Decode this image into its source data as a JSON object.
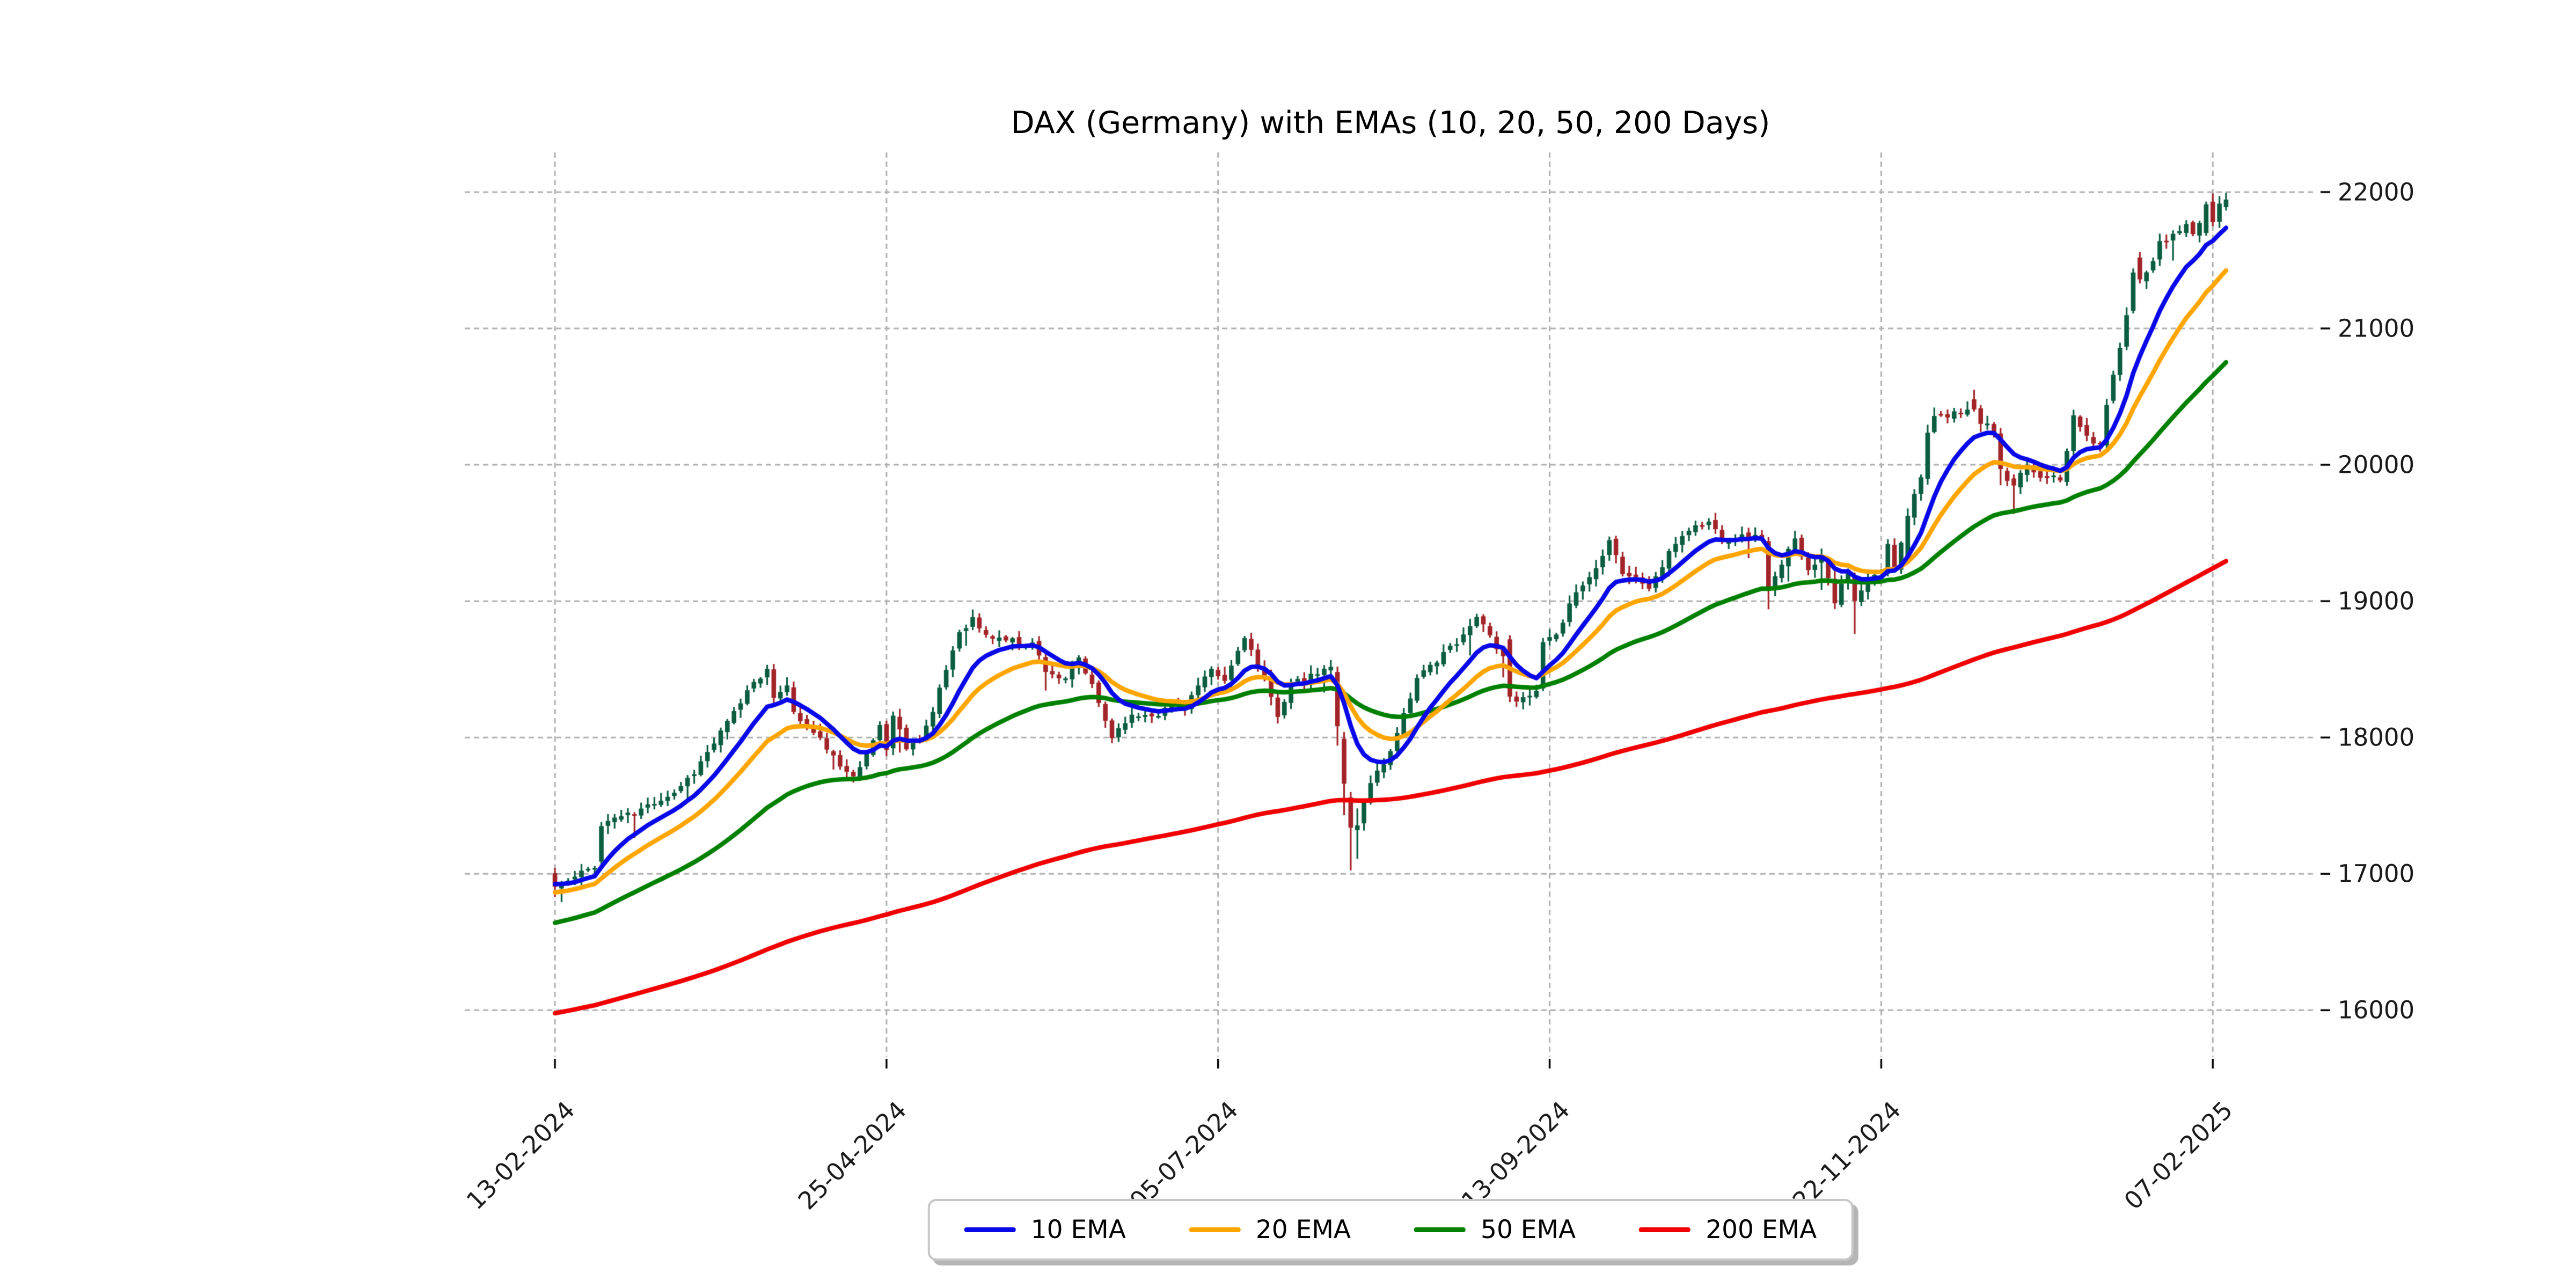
{
  "title": "DAX (Germany) with EMAs (10, 20, 50, 200 Days)",
  "colors": {
    "background": "#ffffff",
    "grid": "#b0b0b0",
    "tick": "#000000",
    "tick_label": "#1a1a1a",
    "candle_up": "#0b5d40",
    "candle_down": "#a32428",
    "ema10": "#0808e8",
    "ema20": "#ffa500",
    "ema50": "#008000",
    "ema200": "#f10000",
    "legend_border": "#c7c7c7"
  },
  "legend": {
    "position": "lower center",
    "items": [
      {
        "label": "10 EMA",
        "color_key": "ema10"
      },
      {
        "label": "20 EMA",
        "color_key": "ema20"
      },
      {
        "label": "50 EMA",
        "color_key": "ema50"
      },
      {
        "label": "200 EMA",
        "color_key": "ema200"
      }
    ]
  },
  "chart_data": {
    "type": "candlestick",
    "instrument": "DAX (Germany)",
    "frequency": "daily",
    "n_candles": 253,
    "grid": true,
    "y_axis_side": "right",
    "y_ticks": [
      16000,
      17000,
      18000,
      19000,
      20000,
      21000,
      22000
    ],
    "y_range": [
      15659,
      22291
    ],
    "x_range_candles": [
      -13.6,
      265.6
    ],
    "x_ticks": [
      {
        "index": 0,
        "label": "13-02-2024"
      },
      {
        "index": 50,
        "label": "25-04-2024"
      },
      {
        "index": 100,
        "label": "05-07-2024"
      },
      {
        "index": 150,
        "label": "13-09-2024"
      },
      {
        "index": 200,
        "label": "22-11-2024"
      },
      {
        "index": 250,
        "label": "07-02-2025"
      }
    ],
    "ema_overlays": [
      {
        "period": 10,
        "label": "10 EMA",
        "color_key": "ema10",
        "initial_value": 16930
      },
      {
        "period": 20,
        "label": "20 EMA",
        "color_key": "ema20",
        "initial_value": 16860
      },
      {
        "period": 50,
        "label": "50 EMA",
        "color_key": "ema50",
        "initial_value": 16630
      },
      {
        "period": 200,
        "label": "200 EMA",
        "color_key": "ema200",
        "initial_value": 15968
      }
    ],
    "close_anchors": [
      [
        0,
        16905
      ],
      [
        2,
        16945
      ],
      [
        4,
        17005
      ],
      [
        6,
        17065
      ],
      [
        7,
        17350
      ],
      [
        9,
        17415
      ],
      [
        12,
        17440
      ],
      [
        15,
        17530
      ],
      [
        18,
        17600
      ],
      [
        21,
        17750
      ],
      [
        24,
        17960
      ],
      [
        27,
        18180
      ],
      [
        30,
        18420
      ],
      [
        32,
        18490
      ],
      [
        33,
        18290
      ],
      [
        35,
        18400
      ],
      [
        36,
        18175
      ],
      [
        38,
        18080
      ],
      [
        41,
        17930
      ],
      [
        43,
        17770
      ],
      [
        45,
        17740
      ],
      [
        47,
        17870
      ],
      [
        49,
        18090
      ],
      [
        50,
        17920
      ],
      [
        51,
        18160
      ],
      [
        53,
        17935
      ],
      [
        55,
        18000
      ],
      [
        57,
        18180
      ],
      [
        59,
        18500
      ],
      [
        61,
        18780
      ],
      [
        63,
        18870
      ],
      [
        65,
        18740
      ],
      [
        67,
        18730
      ],
      [
        70,
        18700
      ],
      [
        72,
        18690
      ],
      [
        74,
        18500
      ],
      [
        77,
        18410
      ],
      [
        79,
        18580
      ],
      [
        81,
        18370
      ],
      [
        84,
        18005
      ],
      [
        86,
        18130
      ],
      [
        88,
        18165
      ],
      [
        91,
        18180
      ],
      [
        93,
        18230
      ],
      [
        95,
        18240
      ],
      [
        97,
        18375
      ],
      [
        99,
        18480
      ],
      [
        101,
        18410
      ],
      [
        104,
        18750
      ],
      [
        106,
        18520
      ],
      [
        109,
        18170
      ],
      [
        111,
        18390
      ],
      [
        113,
        18420
      ],
      [
        115,
        18470
      ],
      [
        117,
        18510
      ],
      [
        118,
        18083
      ],
      [
        119,
        17661
      ],
      [
        120,
        17339
      ],
      [
        121,
        17355
      ],
      [
        123,
        17680
      ],
      [
        125,
        17812
      ],
      [
        127,
        18030
      ],
      [
        128,
        18185
      ],
      [
        130,
        18420
      ],
      [
        132,
        18520
      ],
      [
        134,
        18630
      ],
      [
        136,
        18680
      ],
      [
        138,
        18810
      ],
      [
        139,
        18910
      ],
      [
        141,
        18750
      ],
      [
        143,
        18580
      ],
      [
        144,
        18300
      ],
      [
        146,
        18270
      ],
      [
        148,
        18330
      ],
      [
        149,
        18699
      ],
      [
        151,
        18730
      ],
      [
        153,
        19000
      ],
      [
        155,
        19120
      ],
      [
        157,
        19240
      ],
      [
        159,
        19470
      ],
      [
        161,
        19210
      ],
      [
        163,
        19165
      ],
      [
        165,
        19100
      ],
      [
        167,
        19255
      ],
      [
        169,
        19430
      ],
      [
        171,
        19530
      ],
      [
        174,
        19580
      ],
      [
        176,
        19460
      ],
      [
        178,
        19465
      ],
      [
        180,
        19480
      ],
      [
        182,
        19460
      ],
      [
        183,
        19077
      ],
      [
        185,
        19255
      ],
      [
        187,
        19480
      ],
      [
        189,
        19215
      ],
      [
        191,
        19350
      ],
      [
        193,
        19005
      ],
      [
        195,
        19210
      ],
      [
        196,
        19003
      ],
      [
        198,
        19146
      ],
      [
        200,
        19220
      ],
      [
        201,
        19405
      ],
      [
        202,
        19261
      ],
      [
        204,
        19626
      ],
      [
        206,
        19934
      ],
      [
        207,
        20232
      ],
      [
        208,
        20358
      ],
      [
        210,
        20346
      ],
      [
        212,
        20399
      ],
      [
        214,
        20406
      ],
      [
        215,
        20313
      ],
      [
        217,
        20242
      ],
      [
        218,
        19969
      ],
      [
        219,
        19884
      ],
      [
        220,
        19848
      ],
      [
        222,
        19984
      ],
      [
        224,
        19909
      ],
      [
        226,
        19937
      ],
      [
        227,
        19906
      ],
      [
        229,
        20340
      ],
      [
        231,
        20210
      ],
      [
        233,
        20130
      ],
      [
        234,
        20460
      ],
      [
        235,
        20660
      ],
      [
        236,
        20870
      ],
      [
        237,
        21120
      ],
      [
        238,
        21410
      ],
      [
        239,
        21360
      ],
      [
        241,
        21500
      ],
      [
        242,
        21660
      ],
      [
        243,
        21620
      ],
      [
        244,
        21690
      ],
      [
        246,
        21740
      ],
      [
        247,
        21700
      ],
      [
        248,
        21770
      ],
      [
        249,
        21910
      ],
      [
        250,
        21780
      ],
      [
        251,
        21915
      ],
      [
        252,
        21945
      ]
    ],
    "candle_overrides": {
      "0": [
        17005,
        17045,
        16830,
        16905
      ],
      "7": [
        17090,
        17380,
        17070,
        17350
      ],
      "33": [
        18500,
        18540,
        18240,
        18290
      ],
      "118": [
        18480,
        18520,
        17940,
        18083
      ],
      "119": [
        17990,
        18040,
        17430,
        17661
      ],
      "120": [
        17560,
        17600,
        17025,
        17339
      ],
      "121": [
        17320,
        17480,
        17110,
        17355
      ],
      "144": [
        18720,
        18750,
        18260,
        18300
      ],
      "149": [
        18360,
        18730,
        18340,
        18699
      ],
      "183": [
        19440,
        19470,
        18940,
        19077
      ],
      "196": [
        19180,
        19210,
        18760,
        19003
      ],
      "204": [
        19320,
        19680,
        19300,
        19626
      ],
      "208": [
        20240,
        20420,
        20230,
        20358
      ],
      "214": [
        20480,
        20550,
        20390,
        20406
      ],
      "218": [
        20230,
        20270,
        19850,
        19969
      ],
      "220": [
        19900,
        19930,
        19640,
        19848
      ],
      "235": [
        20470,
        20690,
        20450,
        20660
      ],
      "238": [
        21130,
        21440,
        21110,
        21410
      ],
      "239": [
        21520,
        21560,
        21330,
        21360
      ],
      "249": [
        21700,
        21930,
        21680,
        21910
      ],
      "250": [
        21930,
        21990,
        21750,
        21780
      ],
      "252": [
        21890,
        21995,
        21865,
        21945
      ]
    },
    "synthesis": {
      "seed": 11,
      "close_jitter": 26,
      "open_jitter": 16,
      "wick_base": 10,
      "wick_var": 52,
      "long_wick_chance": 0.07,
      "long_wick_extra": 115
    }
  }
}
